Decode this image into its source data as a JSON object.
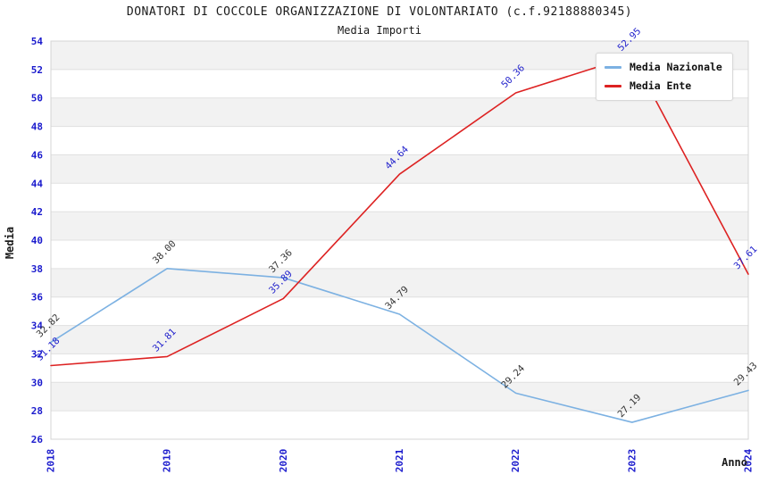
{
  "chart_data": {
    "type": "line",
    "title": "DONATORI DI COCCOLE ORGANIZZAZIONE DI VOLONTARIATO (c.f.92188880345)",
    "subtitle": "Media Importi",
    "xlabel": "Anno",
    "ylabel": "Media",
    "categories": [
      "2018",
      "2019",
      "2020",
      "2021",
      "2022",
      "2023",
      "2024"
    ],
    "ylim": [
      26,
      54
    ],
    "ytick_step": 2,
    "grid": "horizontal-bands",
    "legend_position": "top-right",
    "axis_tick_color": "#1b1bcd",
    "band_colors": [
      "#f2f2f2",
      "#ffffff"
    ],
    "grid_color": "#e0e0e0",
    "border_color": "#d4d4d4",
    "series": [
      {
        "name": "Media Nazionale",
        "color": "#7cb1e2",
        "label_color": "#333333",
        "values": [
          32.82,
          38.0,
          37.36,
          34.79,
          29.24,
          27.19,
          29.43
        ],
        "labels": [
          "32.82",
          "38.00",
          "37.36",
          "34.79",
          "29.24",
          "27.19",
          "29.43"
        ]
      },
      {
        "name": "Media Ente",
        "color": "#dd2222",
        "label_color": "#2222cc",
        "values": [
          31.18,
          31.81,
          35.89,
          44.64,
          50.36,
          52.95,
          37.61
        ],
        "labels": [
          "31.18",
          "31.81",
          "35.89",
          "44.64",
          "50.36",
          "52.95",
          "37.61"
        ]
      }
    ]
  }
}
